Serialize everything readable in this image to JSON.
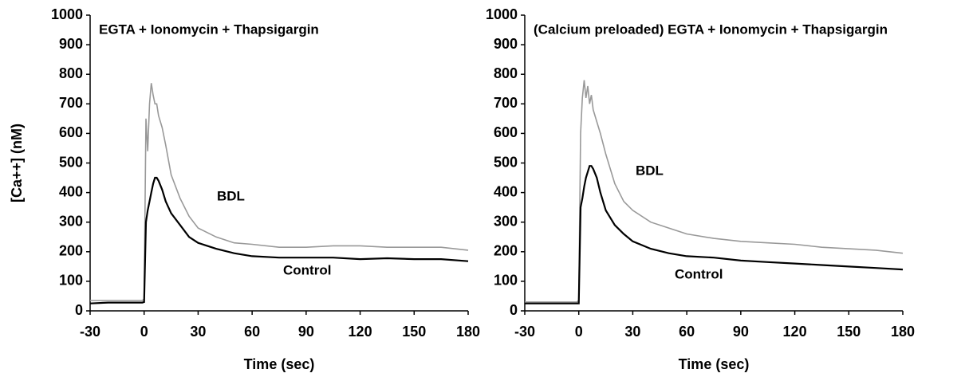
{
  "chart_data": [
    {
      "type": "line",
      "title": "EGTA + Ionomycin + Thapsigargin",
      "x_label": "Time (sec)",
      "y_label": "[Ca++] (nM)",
      "x": [
        -30,
        -20,
        -10,
        -1,
        0,
        1,
        2,
        3,
        4,
        5,
        6,
        7,
        8,
        10,
        12,
        15,
        20,
        25,
        30,
        40,
        50,
        60,
        75,
        90,
        105,
        120,
        135,
        150,
        165,
        180
      ],
      "series": [
        {
          "name": "BDL",
          "color": "#999999",
          "values": [
            35,
            35,
            35,
            35,
            40,
            650,
            540,
            700,
            770,
            730,
            700,
            700,
            660,
            620,
            560,
            460,
            380,
            320,
            280,
            250,
            230,
            225,
            215,
            215,
            220,
            220,
            215,
            215,
            215,
            205
          ]
        },
        {
          "name": "Control",
          "color": "#000000",
          "values": [
            25,
            28,
            28,
            28,
            30,
            300,
            340,
            370,
            400,
            430,
            450,
            450,
            440,
            410,
            370,
            330,
            290,
            250,
            230,
            210,
            195,
            185,
            180,
            180,
            180,
            175,
            178,
            175,
            175,
            168
          ]
        }
      ],
      "xlim": [
        -30,
        180
      ],
      "xticks": [
        -30,
        0,
        30,
        60,
        90,
        120,
        150,
        180
      ],
      "ylim": [
        0,
        1000
      ],
      "yticks": [
        0,
        100,
        200,
        300,
        400,
        500,
        600,
        700,
        800,
        900,
        1000
      ],
      "grid": false
    },
    {
      "type": "line",
      "title": "(Calcium preloaded) EGTA + Ionomycin + Thapsigargin",
      "x_label": "Time (sec)",
      "x": [
        -30,
        -20,
        -10,
        -1,
        0,
        1,
        2,
        3,
        4,
        5,
        6,
        7,
        8,
        10,
        12,
        15,
        20,
        25,
        30,
        40,
        50,
        60,
        75,
        90,
        105,
        120,
        135,
        150,
        165,
        180
      ],
      "series": [
        {
          "name": "BDL",
          "color": "#999999",
          "values": [
            30,
            30,
            30,
            30,
            35,
            600,
            720,
            780,
            720,
            760,
            700,
            730,
            680,
            640,
            600,
            530,
            430,
            370,
            340,
            300,
            280,
            260,
            245,
            235,
            230,
            225,
            215,
            210,
            205,
            195
          ]
        },
        {
          "name": "Control",
          "color": "#000000",
          "values": [
            25,
            25,
            25,
            25,
            25,
            350,
            380,
            420,
            450,
            470,
            490,
            490,
            480,
            450,
            400,
            340,
            290,
            260,
            235,
            210,
            195,
            185,
            180,
            170,
            165,
            160,
            155,
            150,
            145,
            140
          ]
        }
      ],
      "xlim": [
        -30,
        180
      ],
      "xticks": [
        -30,
        0,
        30,
        60,
        90,
        120,
        150,
        180
      ],
      "ylim": [
        0,
        1000
      ],
      "yticks": [
        0,
        100,
        200,
        300,
        400,
        500,
        600,
        700,
        800,
        900,
        1000
      ],
      "grid": false
    }
  ]
}
